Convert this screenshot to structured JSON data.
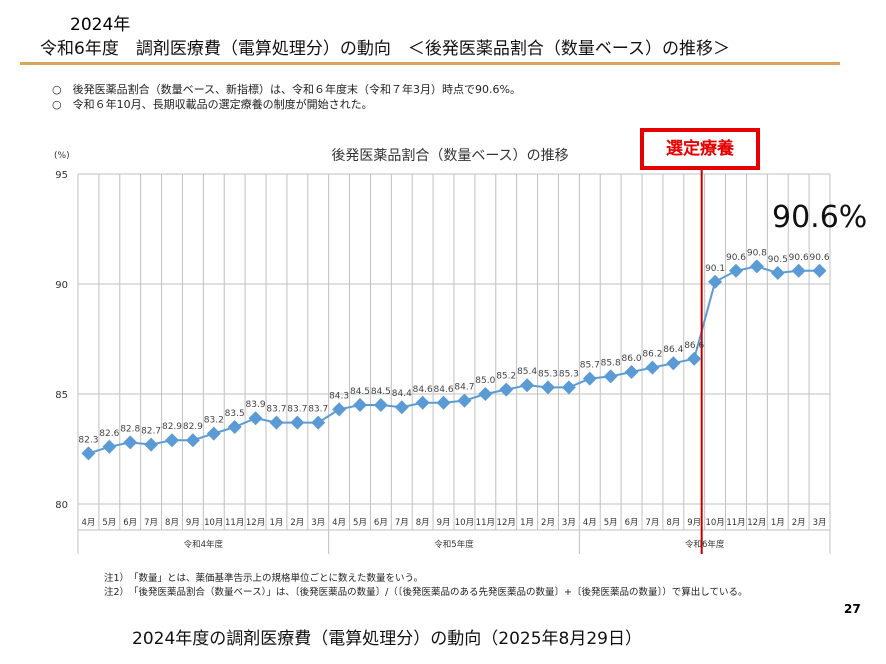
{
  "header": {
    "year": "2024年",
    "title": "令和6年度　調剤医療費（電算処理分）の動向　＜後発医薬品割合（数量ベース）の推移＞"
  },
  "bullets": [
    "○　後発医薬品割合（数量ベース、新指標）は、令和６年度末（令和７年3月）時点で90.6%。",
    "○　令和６年10月、長期収載品の選定療養の制度が開始された。"
  ],
  "callout": "選定療養",
  "big_value": "90.6%",
  "notes": [
    "注1）　「数量」とは、薬価基準告示上の規格単位ごとに数えた数量をいう。",
    "注2）　「後発医薬品割合（数量ベース）」は、〔後発医薬品の数量〕/（〔後発医薬品のある先発医薬品の数量〕+〔後発医薬品の数量〕）で算出している。"
  ],
  "page_number": "27",
  "caption": "2024年度の調剤医療費（電算処理分）の動向（2025年8月29日）",
  "colors": {
    "series": "#5b9bd5",
    "marker_line": "#c00000",
    "grid": "#c0c0c0"
  },
  "chart_data": {
    "type": "line",
    "title": "後発医薬品割合（数量ベース）の推移",
    "ylabel": "(%)",
    "ylim": [
      80,
      95
    ],
    "yticks": [
      80,
      85,
      90,
      95
    ],
    "grid": true,
    "categories": [
      "4月",
      "5月",
      "6月",
      "7月",
      "8月",
      "9月",
      "10月",
      "11月",
      "12月",
      "1月",
      "2月",
      "3月",
      "4月",
      "5月",
      "6月",
      "7月",
      "8月",
      "9月",
      "10月",
      "11月",
      "12月",
      "1月",
      "2月",
      "3月",
      "4月",
      "5月",
      "6月",
      "7月",
      "8月",
      "9月",
      "10月",
      "11月",
      "12月",
      "1月",
      "2月",
      "3月"
    ],
    "groups": [
      {
        "label": "令和4年度",
        "count": 12
      },
      {
        "label": "令和5年度",
        "count": 12
      },
      {
        "label": "令和6年度",
        "count": 12
      }
    ],
    "series": [
      {
        "name": "後発医薬品割合",
        "values": [
          82.3,
          82.6,
          82.8,
          82.7,
          82.9,
          82.9,
          83.2,
          83.5,
          83.9,
          83.7,
          83.7,
          83.7,
          84.3,
          84.5,
          84.5,
          84.4,
          84.6,
          84.6,
          84.7,
          85.0,
          85.2,
          85.4,
          85.3,
          85.3,
          85.7,
          85.8,
          86.0,
          86.2,
          86.4,
          86.6,
          90.1,
          90.6,
          90.8,
          90.5,
          90.6,
          90.6
        ]
      }
    ],
    "annotations": [
      {
        "type": "vertical-line",
        "between": [
          "令和6年度 9月",
          "令和6年度 10月"
        ],
        "label": "選定療養"
      }
    ]
  }
}
